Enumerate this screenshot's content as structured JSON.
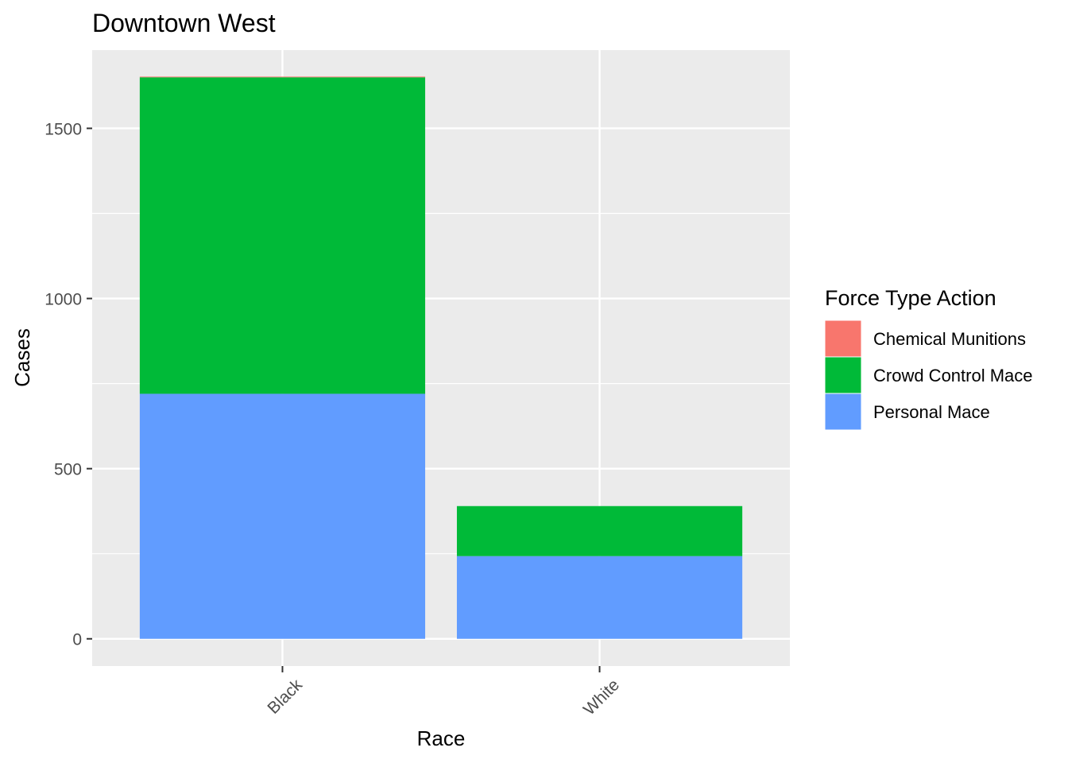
{
  "chart_data": {
    "type": "bar",
    "stacked": true,
    "title": "Downtown West",
    "xlabel": "Race",
    "ylabel": "Cases",
    "categories": [
      "Black",
      "White"
    ],
    "series": [
      {
        "name": "Chemical Munitions",
        "values": [
          2,
          0
        ],
        "color": "#F8766D"
      },
      {
        "name": "Crowd Control Mace",
        "values": [
          930,
          147
        ],
        "color": "#00BA38"
      },
      {
        "name": "Personal Mace",
        "values": [
          720,
          243
        ],
        "color": "#619CFF"
      }
    ],
    "ylim": [
      -80,
      1730
    ],
    "yticks": [
      0,
      500,
      1000,
      1500
    ],
    "grid": true,
    "legend": {
      "title": "Force Type Action",
      "position": "right"
    }
  }
}
